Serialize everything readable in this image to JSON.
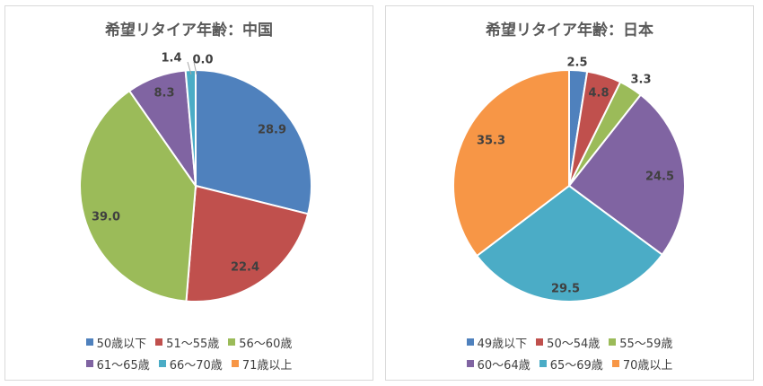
{
  "chart_data": [
    {
      "type": "pie",
      "title": "希望リタイア年齢：中国",
      "categories": [
        "50歳以下",
        "51～55歳",
        "56～60歳",
        "61～65歳",
        "66～70歳",
        "71歳以上"
      ],
      "values": [
        28.9,
        22.4,
        39.0,
        8.3,
        1.4,
        0.0
      ],
      "value_labels": [
        "28.9",
        "22.4",
        "39.0",
        "8.3",
        "1.4",
        "0.0"
      ],
      "colors": [
        "#4f81bd",
        "#c0504d",
        "#9bbb59",
        "#8064a2",
        "#4bacc6",
        "#f79646"
      ],
      "legend_position": "bottom",
      "legend_rows": [
        [
          0,
          1,
          2
        ],
        [
          3,
          4,
          5
        ]
      ]
    },
    {
      "type": "pie",
      "title": "希望リタイア年齢：日本",
      "categories": [
        "49歳以下",
        "50～54歳",
        "55～59歳",
        "60～64歳",
        "65～69歳",
        "70歳以上"
      ],
      "values": [
        2.5,
        4.8,
        3.3,
        24.5,
        29.5,
        35.3
      ],
      "value_labels": [
        "2.5",
        "4.8",
        "3.3",
        "24.5",
        "29.5",
        "35.3"
      ],
      "colors": [
        "#4f81bd",
        "#c0504d",
        "#9bbb59",
        "#8064a2",
        "#4bacc6",
        "#f79646"
      ],
      "legend_position": "bottom",
      "legend_rows": [
        [
          0,
          1,
          2
        ],
        [
          3,
          4,
          5
        ]
      ]
    }
  ]
}
